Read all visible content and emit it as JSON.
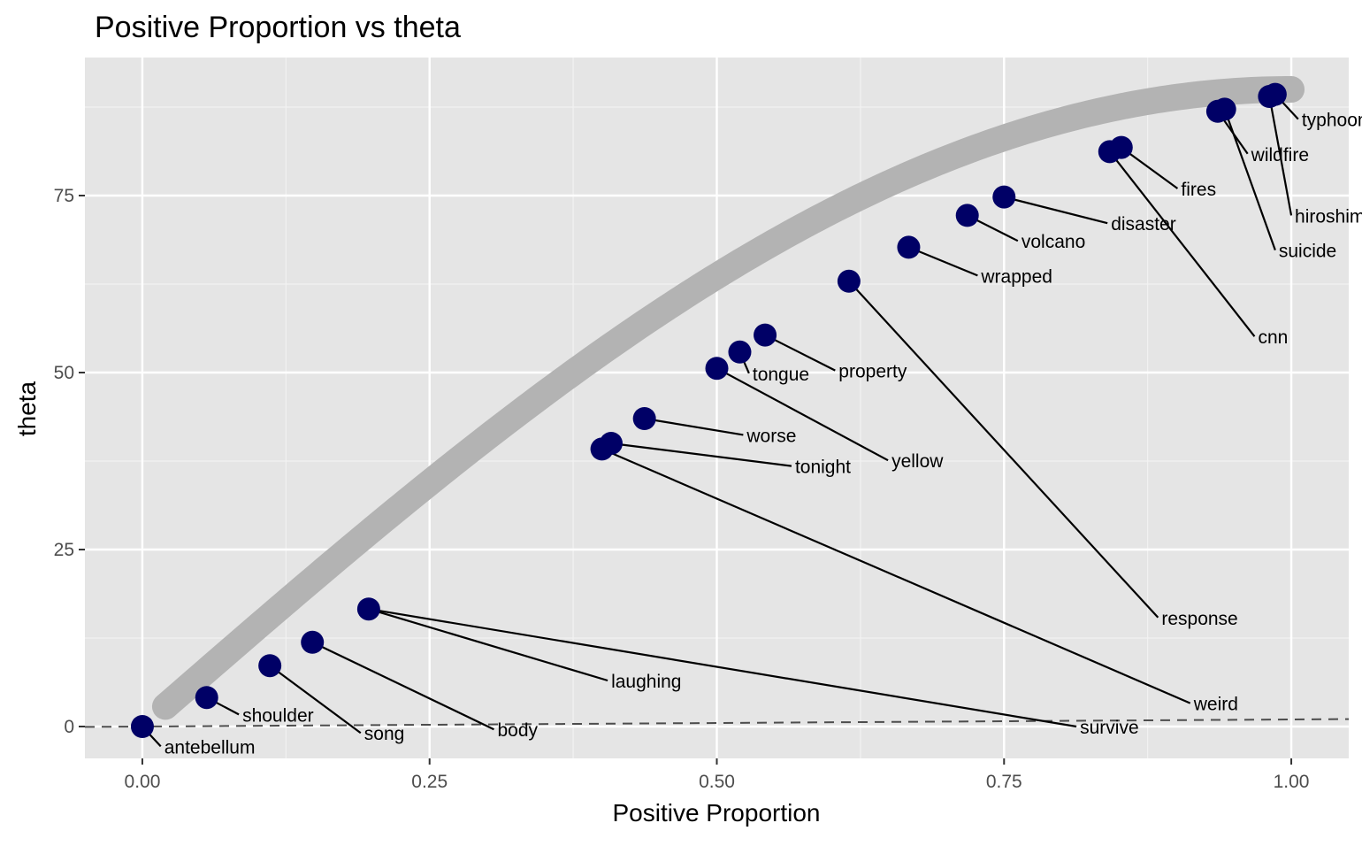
{
  "chart_data": {
    "type": "scatter",
    "title": "Positive Proportion vs theta",
    "xlabel": "Positive Proportion",
    "ylabel": "theta",
    "xlim": [
      -0.05,
      1.05
    ],
    "ylim": [
      -4.5,
      94.5
    ],
    "x_ticks": [
      {
        "value": 0.0,
        "label": "0.00"
      },
      {
        "value": 0.25,
        "label": "0.25"
      },
      {
        "value": 0.5,
        "label": "0.50"
      },
      {
        "value": 0.75,
        "label": "0.75"
      },
      {
        "value": 1.0,
        "label": "1.00"
      }
    ],
    "y_ticks": [
      {
        "value": 0,
        "label": "0"
      },
      {
        "value": 25,
        "label": "25"
      },
      {
        "value": 50,
        "label": "50"
      },
      {
        "value": 75,
        "label": "75"
      }
    ],
    "grid": true,
    "background_color": "#e5e5e5",
    "point_color": "#000066",
    "curve_color": "#b3b3b3",
    "reference_line": {
      "style": "dashed",
      "color": "#4d4d4d",
      "slope": 1.0,
      "intercept": 0
    },
    "background_curve": {
      "description": "theta = 90 * sin(pi/2 * p)",
      "x_start": 0.02,
      "x_end": 1.0
    },
    "points": [
      {
        "label": "antebellum",
        "x": 0.0,
        "y": 0.0,
        "label_x": 0.016,
        "label_y": -2.8
      },
      {
        "label": "shoulder",
        "x": 0.056,
        "y": 4.1,
        "label_x": 0.084,
        "label_y": 1.7
      },
      {
        "label": "song",
        "x": 0.111,
        "y": 8.6,
        "label_x": 0.19,
        "label_y": -0.9
      },
      {
        "label": "body",
        "x": 0.148,
        "y": 11.9,
        "label_x": 0.306,
        "label_y": -0.4
      },
      {
        "label": "laughing",
        "x": 0.197,
        "y": 16.6,
        "label_x": 0.405,
        "label_y": 6.5
      },
      {
        "label": "survive",
        "x": 0.197,
        "y": 16.6,
        "label_x": 0.813,
        "label_y": 0.0
      },
      {
        "label": "weird",
        "x": 0.4,
        "y": 39.2,
        "label_x": 0.912,
        "label_y": 3.3
      },
      {
        "label": "tonight",
        "x": 0.408,
        "y": 40.0,
        "label_x": 0.565,
        "label_y": 36.8
      },
      {
        "label": "worse",
        "x": 0.437,
        "y": 43.5,
        "label_x": 0.523,
        "label_y": 41.2
      },
      {
        "label": "yellow",
        "x": 0.5,
        "y": 50.6,
        "label_x": 0.649,
        "label_y": 37.6
      },
      {
        "label": "tongue",
        "x": 0.52,
        "y": 52.9,
        "label_x": 0.528,
        "label_y": 49.9
      },
      {
        "label": "property",
        "x": 0.542,
        "y": 55.3,
        "label_x": 0.603,
        "label_y": 50.3
      },
      {
        "label": "response",
        "x": 0.615,
        "y": 62.9,
        "label_x": 0.884,
        "label_y": 15.4
      },
      {
        "label": "wrapped",
        "x": 0.667,
        "y": 67.7,
        "label_x": 0.727,
        "label_y": 63.7
      },
      {
        "label": "volcano",
        "x": 0.718,
        "y": 72.2,
        "label_x": 0.762,
        "label_y": 68.6
      },
      {
        "label": "disaster",
        "x": 0.75,
        "y": 74.8,
        "label_x": 0.84,
        "label_y": 71.1
      },
      {
        "label": "cnn",
        "x": 0.842,
        "y": 81.2,
        "label_x": 0.968,
        "label_y": 55.1
      },
      {
        "label": "fires",
        "x": 0.852,
        "y": 81.8,
        "label_x": 0.901,
        "label_y": 76.0
      },
      {
        "label": "wildfire",
        "x": 0.936,
        "y": 86.9,
        "label_x": 0.962,
        "label_y": 80.9
      },
      {
        "label": "suicide",
        "x": 0.942,
        "y": 87.2,
        "label_x": 0.986,
        "label_y": 67.3
      },
      {
        "label": "hiroshima",
        "x": 0.981,
        "y": 89.0,
        "label_x": 1.0,
        "label_y": 72.2
      },
      {
        "label": "typhoon",
        "x": 0.986,
        "y": 89.3,
        "label_x": 1.006,
        "label_y": 85.8
      }
    ]
  }
}
